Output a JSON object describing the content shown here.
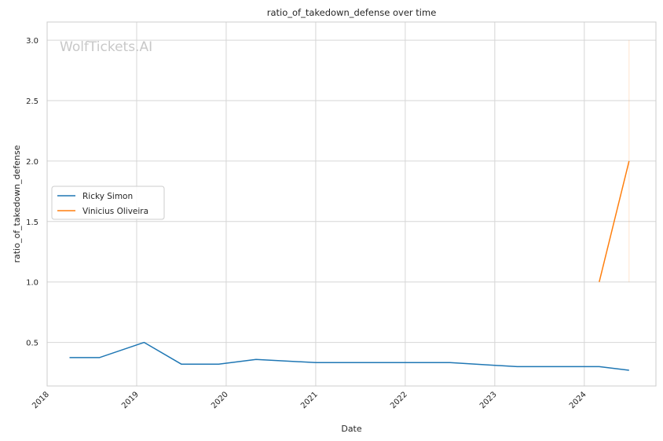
{
  "chart_data": {
    "type": "line",
    "title": "ratio_of_takedown_defense over time",
    "xlabel": "Date",
    "ylabel": "ratio_of_takedown_defense",
    "watermark": "WolfTickets.AI",
    "xlim": [
      2018.0,
      2024.8
    ],
    "ylim": [
      0.14,
      3.15
    ],
    "x_ticks": [
      2018,
      2019,
      2020,
      2021,
      2022,
      2023,
      2024
    ],
    "x_tick_labels": [
      "2018",
      "2019",
      "2020",
      "2021",
      "2022",
      "2023",
      "2024"
    ],
    "y_ticks": [
      0.5,
      1.0,
      1.5,
      2.0,
      2.5,
      3.0
    ],
    "y_tick_labels": [
      "0.5",
      "1.0",
      "1.5",
      "2.0",
      "2.5",
      "3.0"
    ],
    "grid": true,
    "legend_position": "center-left",
    "series": [
      {
        "name": "Ricky Simon",
        "color": "#1f77b4",
        "points": [
          {
            "x": "2018-04",
            "y": 0.375
          },
          {
            "x": "2018-08",
            "y": 0.375
          },
          {
            "x": "2019-02",
            "y": 0.5
          },
          {
            "x": "2019-07",
            "y": 0.32
          },
          {
            "x": "2019-12",
            "y": 0.32
          },
          {
            "x": "2020-05",
            "y": 0.36
          },
          {
            "x": "2021-01",
            "y": 0.333
          },
          {
            "x": "2022-07",
            "y": 0.333
          },
          {
            "x": "2023-04",
            "y": 0.3
          },
          {
            "x": "2024-03",
            "y": 0.3
          },
          {
            "x": "2024-07",
            "y": 0.27
          }
        ]
      },
      {
        "name": "Vinicius Oliveira",
        "color": "#ff7f0e",
        "points": [
          {
            "x": "2024-03",
            "y": 1.0
          },
          {
            "x": "2024-07",
            "y": 2.0
          }
        ],
        "range_band": {
          "x": "2024-07",
          "y_low": 1.0,
          "y_high": 3.0
        }
      }
    ]
  }
}
